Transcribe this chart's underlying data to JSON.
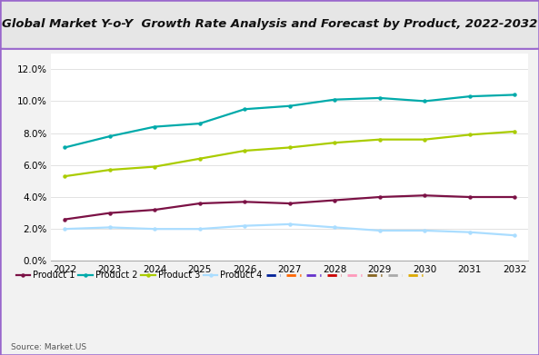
{
  "title": "Global Market Y-o-Y  Growth Rate Analysis and Forecast by Product, 2022-2032",
  "years": [
    2022,
    2023,
    2024,
    2025,
    2026,
    2027,
    2028,
    2029,
    2030,
    2031,
    2032
  ],
  "series": [
    {
      "name": "Product 1",
      "color": "#7B1145",
      "values": [
        0.026,
        0.03,
        0.032,
        0.036,
        0.037,
        0.036,
        0.038,
        0.04,
        0.041,
        0.04,
        0.04
      ]
    },
    {
      "name": "Product 2",
      "color": "#00AAAA",
      "values": [
        0.071,
        0.078,
        0.084,
        0.086,
        0.095,
        0.097,
        0.101,
        0.102,
        0.1,
        0.103,
        0.104
      ]
    },
    {
      "name": "Product 3",
      "color": "#AACC00",
      "values": [
        0.053,
        0.057,
        0.059,
        0.064,
        0.069,
        0.071,
        0.074,
        0.076,
        0.076,
        0.079,
        0.081
      ]
    },
    {
      "name": "Product 4",
      "color": "#AADDFF",
      "values": [
        0.02,
        0.021,
        0.02,
        0.02,
        0.022,
        0.023,
        0.021,
        0.019,
        0.019,
        0.018,
        0.016
      ]
    }
  ],
  "extra_legend_colors": [
    "#002299",
    "#FF6600",
    "#6633CC",
    "#CC0000",
    "#FF99BB",
    "#886622",
    "#AAAAAA",
    "#DDAA00"
  ],
  "ylim": [
    0.0,
    0.13
  ],
  "yticks": [
    0.0,
    0.02,
    0.04,
    0.06,
    0.08,
    0.1,
    0.12
  ],
  "title_bg_color": "#E6E6E6",
  "plot_bg_color": "#FFFFFF",
  "outer_bg_color": "#F2F2F2",
  "border_color": "#9966CC",
  "source_text": "Source: Market.US",
  "title_fontsize": 9.5,
  "legend_fontsize": 7,
  "tick_fontsize": 7.5
}
